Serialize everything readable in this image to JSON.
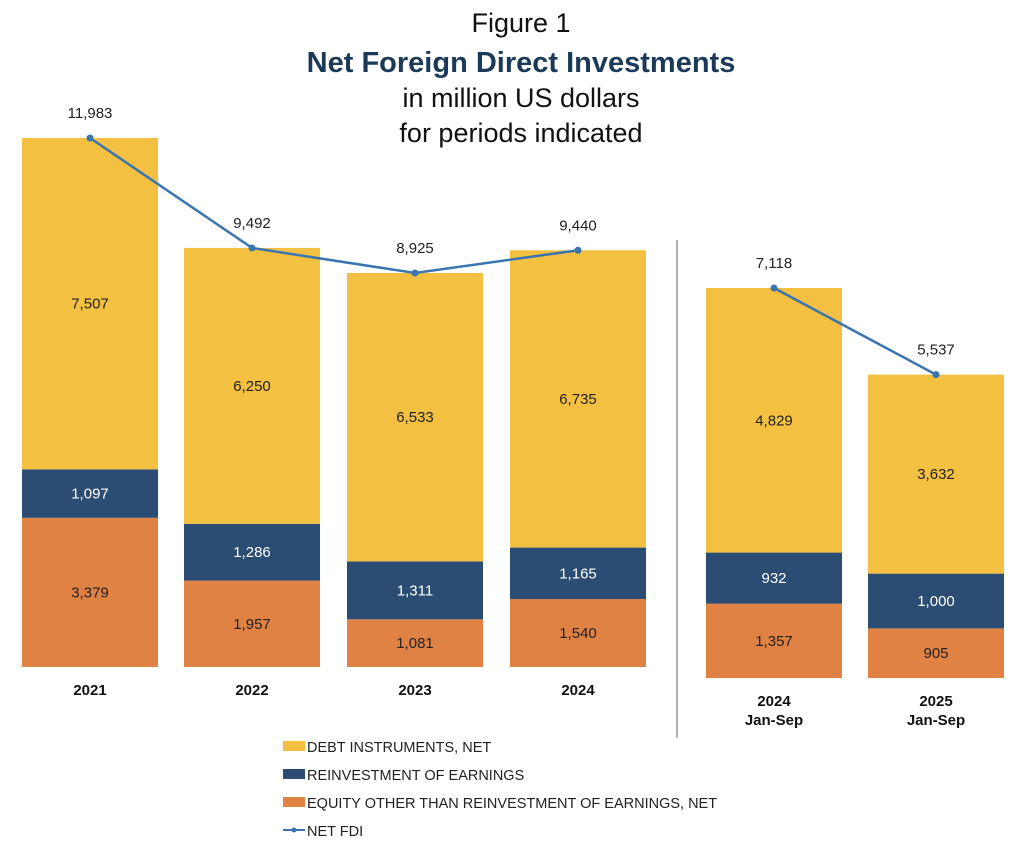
{
  "chart_data": {
    "type": "stacked bar + line",
    "title": "Figure 1",
    "subtitle": "Net Foreign Direct Investments",
    "subtitle2": "in million US dollars",
    "subtitle3": "for periods indicated",
    "categories": [
      [
        "2021"
      ],
      [
        "2022"
      ],
      [
        "2023"
      ],
      [
        "2024"
      ],
      [
        "2024",
        "Jan-Sep"
      ],
      [
        "2025",
        "Jan-Sep"
      ]
    ],
    "panels": [
      [
        0,
        1,
        2,
        3
      ],
      [
        4,
        5
      ]
    ],
    "series": [
      {
        "name": "EQUITY OTHER THAN REINVESTMENT OF EARNINGS, NET",
        "kind": "bar",
        "color": "#E08243",
        "labels": [
          "3,379",
          "1,957",
          "1,081",
          "1,540",
          "1,357",
          "905"
        ],
        "values": [
          3379,
          1957,
          1081,
          1540,
          1357,
          905
        ]
      },
      {
        "name": "REINVESTMENT OF EARNINGS",
        "kind": "bar",
        "color": "#2B4D74",
        "labels": [
          "1,097",
          "1,286",
          "1,311",
          "1,165",
          "932",
          "1,000"
        ],
        "values": [
          1097,
          1286,
          1311,
          1165,
          932,
          1000
        ]
      },
      {
        "name": "DEBT INSTRUMENTS, NET",
        "kind": "bar",
        "color": "#F3C041",
        "labels": [
          "7,507",
          "6,250",
          "6,533",
          "6,735",
          "4,829",
          "3,632"
        ],
        "values": [
          7507,
          6250,
          6533,
          6735,
          4829,
          3632
        ]
      },
      {
        "name": "NET FDI",
        "kind": "line",
        "color": "#3A75B0",
        "labels": [
          "11,983",
          "9,492",
          "8,925",
          "9,440",
          "7,118",
          "5,537"
        ],
        "values": [
          11983,
          9492,
          8925,
          9440,
          7118,
          5537
        ]
      }
    ],
    "legend_order": [
      2,
      1,
      0,
      3
    ],
    "legend_position": "bottom",
    "grid": false
  }
}
